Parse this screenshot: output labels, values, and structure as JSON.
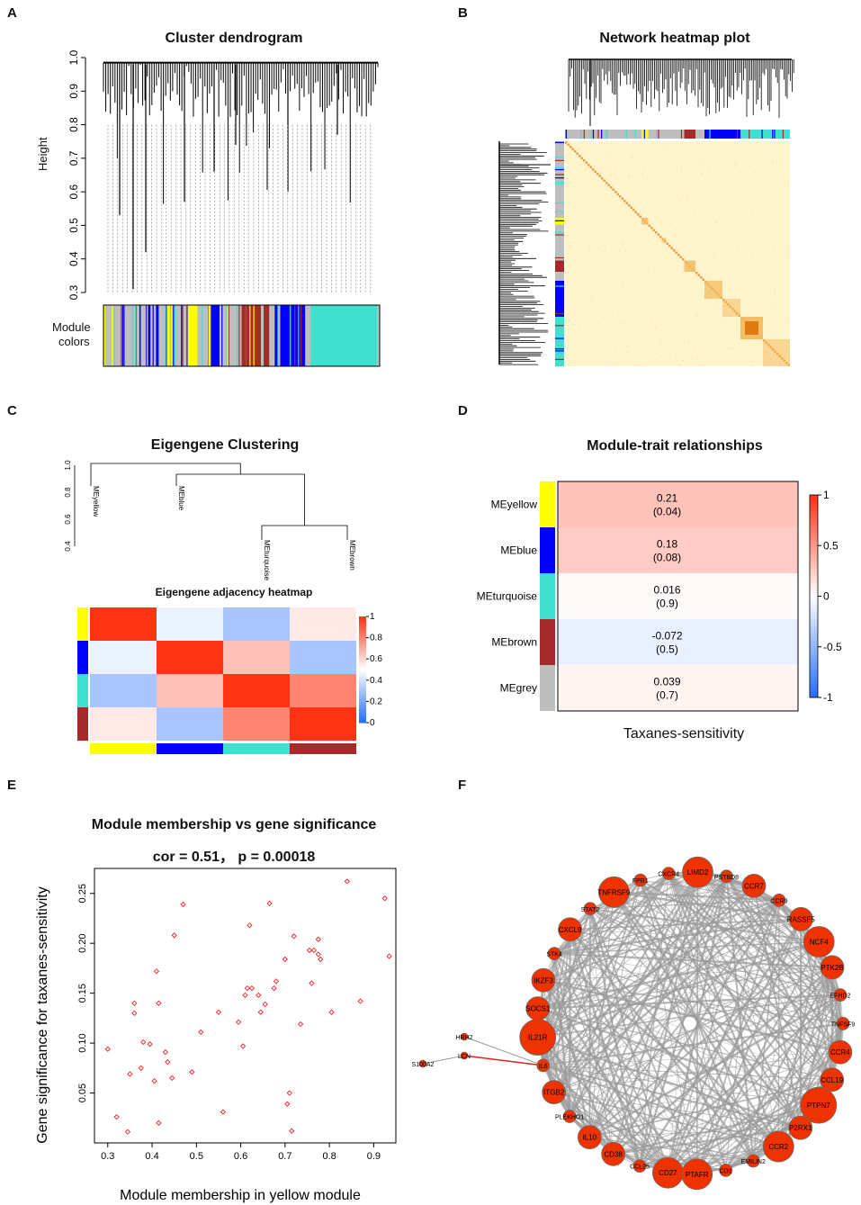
{
  "panels": {
    "A": {
      "letter": "A",
      "title": "Cluster dendrogram",
      "ylabel": "Height",
      "yticks": [
        "0.3",
        "0.4",
        "0.5",
        "0.6",
        "0.7",
        "0.8",
        "0.9",
        "1.0"
      ],
      "module_label_1": "Module",
      "module_label_2": "colors"
    },
    "B": {
      "letter": "B",
      "title": "Network heatmap plot"
    },
    "C": {
      "letter": "C",
      "title": "Eigengene Clustering",
      "heat_title": "Eigengene adjacency heatmap",
      "dendro_yticks": [
        "0.4",
        "0.6",
        "0.8",
        "1.0"
      ],
      "leaves": [
        "MEyellow",
        "MEblue",
        "MEturquoise",
        "MEbrown"
      ],
      "colorbar_ticks": [
        "0",
        "0.2",
        "0.4",
        "0.6",
        "0.8",
        "1"
      ]
    },
    "D": {
      "letter": "D",
      "title": "Module-trait relationships",
      "xlabel": "Taxanes-sensitivity",
      "colorbar_ticks": [
        "1",
        "0.5",
        "0",
        "-0.5",
        "-1"
      ]
    },
    "E": {
      "letter": "E",
      "title": "Module membership vs gene significance",
      "subtitle": "cor = 0.51， p = 0.00018"
    },
    "F": {
      "letter": "F"
    }
  },
  "colors": {
    "yellow": "#ffff00",
    "blue": "#0000ff",
    "turquoise": "#40e0d0",
    "brown": "#a52a2a",
    "grey": "#bebebe",
    "node": "#ee3300",
    "edge": "#999999",
    "red_edge": "#dd2222",
    "scatter": "#ee2222"
  },
  "chart_data": [
    {
      "type": "dendrogram",
      "panel": "A",
      "title": "Cluster dendrogram",
      "ylabel": "Height",
      "ylim": [
        0.3,
        1.0
      ],
      "module_colors_order": [
        "grey",
        "yellow",
        "grey",
        "blue",
        "grey",
        "yellow",
        "grey",
        "brown",
        "grey",
        "blue",
        "grey",
        "turquoise",
        "grey"
      ]
    },
    {
      "type": "heatmap",
      "panel": "B",
      "title": "Network heatmap plot",
      "module_blocks_diagonal": [
        "grey",
        "yellow",
        "grey",
        "brown",
        "grey",
        "blue",
        "turquoise"
      ]
    },
    {
      "type": "heatmap",
      "panel": "C",
      "title": "Eigengene adjacency heatmap",
      "modules": [
        "yellow",
        "blue",
        "turquoise",
        "brown"
      ],
      "matrix": [
        [
          1.0,
          0.45,
          0.3,
          0.55
        ],
        [
          0.45,
          1.0,
          0.65,
          0.3
        ],
        [
          0.3,
          0.65,
          1.0,
          0.8
        ],
        [
          0.55,
          0.3,
          0.8,
          1.0
        ]
      ],
      "range": [
        0,
        1
      ],
      "dendrogram": {
        "leaves": [
          "MEyellow",
          "MEblue",
          "MEturquoise",
          "MEbrown"
        ],
        "ylim": [
          0.4,
          1.0
        ]
      }
    },
    {
      "type": "heatmap",
      "panel": "D",
      "title": "Module-trait relationships",
      "rows": [
        "MEyellow",
        "MEblue",
        "MEturquoise",
        "MEbrown",
        "MEgrey"
      ],
      "row_colors": [
        "yellow",
        "blue",
        "turquoise",
        "brown",
        "grey"
      ],
      "column": "Taxanes-sensitivity",
      "cor": [
        0.21,
        0.18,
        0.016,
        -0.072,
        0.039
      ],
      "cor_labels": [
        "0.21",
        "0.18",
        "0.016",
        "-0.072",
        "0.039"
      ],
      "p_labels": [
        "(0.04)",
        "(0.08)",
        "(0.9)",
        "(0.5)",
        "(0.7)"
      ],
      "range": [
        -1,
        1
      ]
    },
    {
      "type": "scatter",
      "panel": "E",
      "title": "Module membership vs gene significance",
      "subtitle": "cor = 0.51， p = 0.00018",
      "xlabel": "Module membership in yellow module",
      "ylabel": "Gene significance for taxanes-sensitivity",
      "xlim": [
        0.27,
        0.95
      ],
      "ylim": [
        0.0,
        0.275
      ],
      "xticks": [
        0.3,
        0.4,
        0.5,
        0.6,
        0.7,
        0.8,
        0.9
      ],
      "yticks": [
        0.05,
        0.1,
        0.15,
        0.2,
        0.25
      ],
      "xtick_labels": [
        "0.3",
        "0.4",
        "0.5",
        "0.6",
        "0.7",
        "0.8",
        "0.9"
      ],
      "ytick_labels": [
        "0.05",
        "0.10",
        "0.15",
        "0.20",
        "0.25"
      ],
      "points": [
        [
          0.3,
          0.094
        ],
        [
          0.32,
          0.026
        ],
        [
          0.345,
          0.011
        ],
        [
          0.35,
          0.069
        ],
        [
          0.36,
          0.14
        ],
        [
          0.36,
          0.13
        ],
        [
          0.375,
          0.075
        ],
        [
          0.38,
          0.101
        ],
        [
          0.395,
          0.099
        ],
        [
          0.405,
          0.062
        ],
        [
          0.41,
          0.172
        ],
        [
          0.415,
          0.14
        ],
        [
          0.415,
          0.02
        ],
        [
          0.43,
          0.091
        ],
        [
          0.435,
          0.081
        ],
        [
          0.445,
          0.065
        ],
        [
          0.45,
          0.208
        ],
        [
          0.47,
          0.239
        ],
        [
          0.49,
          0.071
        ],
        [
          0.51,
          0.111
        ],
        [
          0.55,
          0.131
        ],
        [
          0.56,
          0.031
        ],
        [
          0.595,
          0.121
        ],
        [
          0.605,
          0.097
        ],
        [
          0.61,
          0.148
        ],
        [
          0.615,
          0.155
        ],
        [
          0.62,
          0.218
        ],
        [
          0.625,
          0.155
        ],
        [
          0.64,
          0.148
        ],
        [
          0.645,
          0.131
        ],
        [
          0.655,
          0.139
        ],
        [
          0.665,
          0.24
        ],
        [
          0.675,
          0.155
        ],
        [
          0.68,
          0.162
        ],
        [
          0.7,
          0.184
        ],
        [
          0.705,
          0.039
        ],
        [
          0.71,
          0.05
        ],
        [
          0.715,
          0.012
        ],
        [
          0.72,
          0.207
        ],
        [
          0.735,
          0.119
        ],
        [
          0.755,
          0.193
        ],
        [
          0.76,
          0.16
        ],
        [
          0.765,
          0.193
        ],
        [
          0.775,
          0.204
        ],
        [
          0.775,
          0.189
        ],
        [
          0.78,
          0.184
        ],
        [
          0.805,
          0.131
        ],
        [
          0.84,
          0.262
        ],
        [
          0.87,
          0.142
        ],
        [
          0.925,
          0.245
        ],
        [
          0.935,
          0.187
        ]
      ]
    },
    {
      "type": "network",
      "panel": "F",
      "ring_nodes": [
        {
          "label": "LIMD2",
          "size": "large"
        },
        {
          "label": "PSTBD8",
          "size": "small"
        },
        {
          "label": "CCR7",
          "size": "medium"
        },
        {
          "label": "CCR9",
          "size": "small"
        },
        {
          "label": "RASSF5",
          "size": "medium"
        },
        {
          "label": "NCF4",
          "size": "large"
        },
        {
          "label": "PTK2B",
          "size": "medium"
        },
        {
          "label": "EFHD2",
          "size": "small"
        },
        {
          "label": "TNFSF9",
          "size": "small"
        },
        {
          "label": "CCR4",
          "size": "medium"
        },
        {
          "label": "CCL19",
          "size": "medium"
        },
        {
          "label": "PTPN7",
          "size": "xlarge"
        },
        {
          "label": "P2RX1",
          "size": "medium"
        },
        {
          "label": "CCR2",
          "size": "large"
        },
        {
          "label": "EMILIN2",
          "size": "small"
        },
        {
          "label": "CD1",
          "size": "small"
        },
        {
          "label": "PTAFR",
          "size": "large"
        },
        {
          "label": "CD27",
          "size": "large"
        },
        {
          "label": "CCL25",
          "size": "small"
        },
        {
          "label": "CD38",
          "size": "medium"
        },
        {
          "label": "IL10",
          "size": "medium"
        },
        {
          "label": "PLEKHO1",
          "size": "small"
        },
        {
          "label": "ITGB2",
          "size": "medium"
        },
        {
          "label": "IL6",
          "size": "small"
        },
        {
          "label": "IL21R",
          "size": "xlarge"
        },
        {
          "label": "SOCS1",
          "size": "medium"
        },
        {
          "label": "IKZF3",
          "size": "medium"
        },
        {
          "label": "STK4",
          "size": "small"
        },
        {
          "label": "CXCL9",
          "size": "medium"
        },
        {
          "label": "STAT2",
          "size": "small"
        },
        {
          "label": "TNFRSF9",
          "size": "large"
        },
        {
          "label": "FPR1",
          "size": "small"
        },
        {
          "label": "CXCR4",
          "size": "small"
        }
      ],
      "outer_nodes": [
        {
          "label": "HRH2"
        },
        {
          "label": "LCN"
        },
        {
          "label": "S100A2"
        }
      ],
      "highlight_edge": [
        "LCN",
        "IL6"
      ]
    }
  ]
}
